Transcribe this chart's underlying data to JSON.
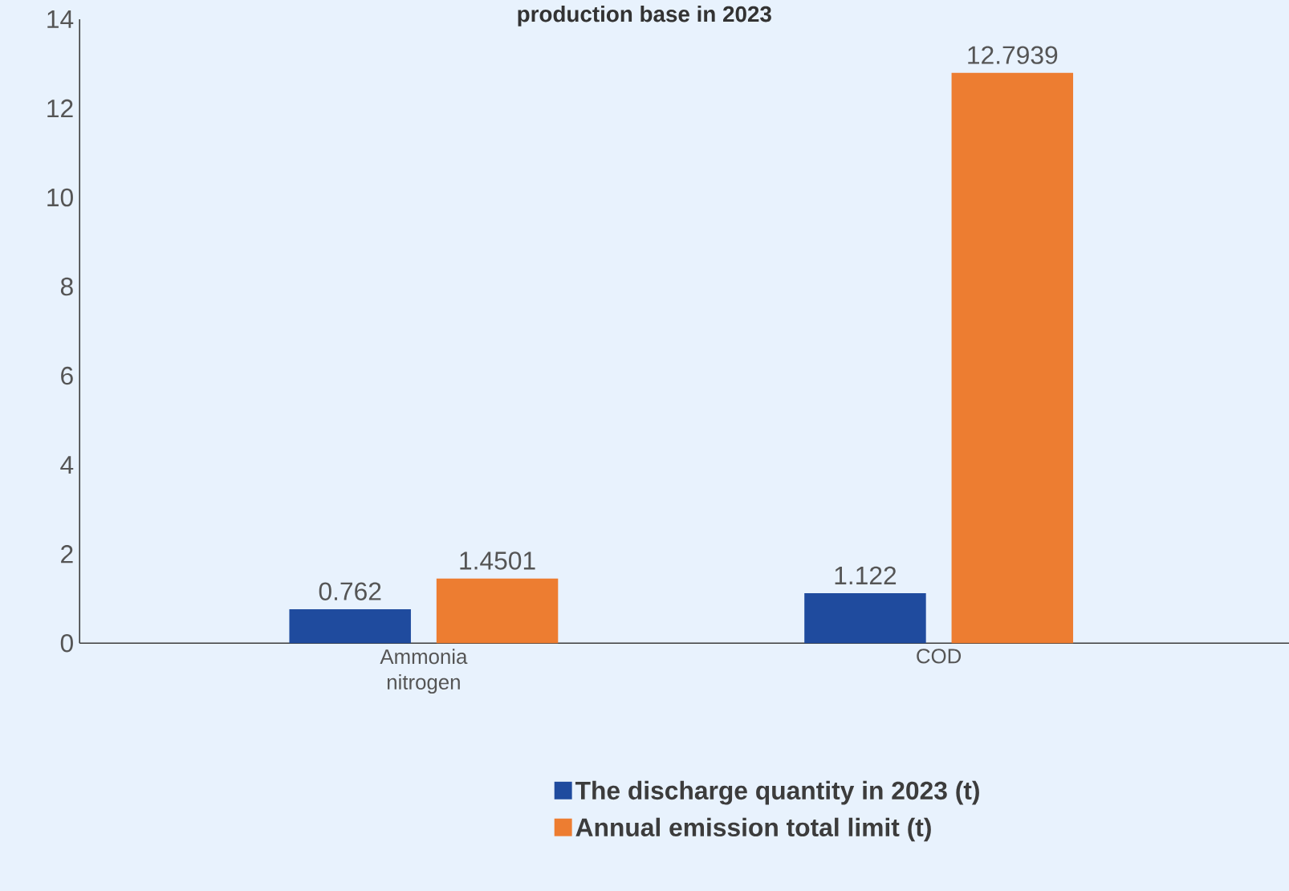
{
  "chart_data": {
    "type": "bar",
    "title": "production base in 2023",
    "categories": [
      "Ammonia nitrogen",
      "COD"
    ],
    "series": [
      {
        "name": "The discharge quantity in 2023 (t)",
        "color": "#1f4b9e",
        "values": [
          0.762,
          1.122
        ]
      },
      {
        "name": "Annual emission total limit (t)",
        "color": "#ed7d31",
        "values": [
          1.4501,
          12.7939
        ]
      }
    ],
    "ylim": [
      0,
      14
    ],
    "yticks": [
      0,
      2,
      4,
      6,
      8,
      10,
      12,
      14
    ],
    "grid": false,
    "legend": "bottom",
    "data_labels": true
  }
}
